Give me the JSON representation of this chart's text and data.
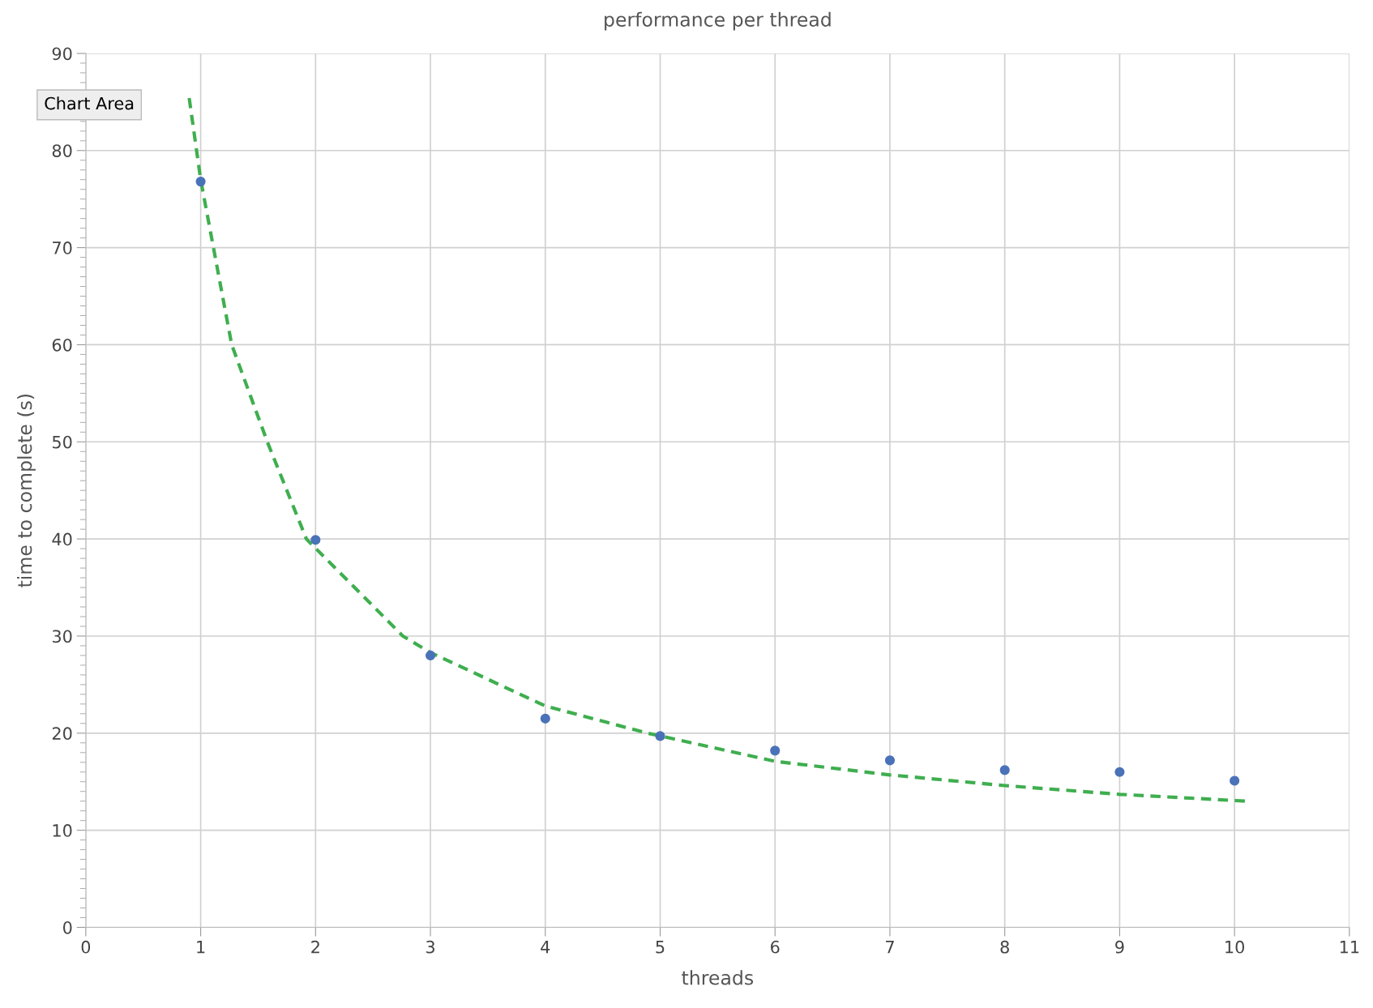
{
  "chart_data": {
    "type": "scatter",
    "title": "performance per thread",
    "xlabel": "threads",
    "ylabel": "time to complete (s)",
    "xlim": [
      0,
      11
    ],
    "xticks": [
      0,
      1,
      2,
      3,
      4,
      5,
      6,
      7,
      8,
      9,
      10,
      11
    ],
    "ylim": [
      0,
      90
    ],
    "yticks": [
      0,
      10,
      20,
      30,
      40,
      50,
      60,
      70,
      80,
      90
    ],
    "grid": true,
    "marker": "circle",
    "annotations": [
      "Chart Area"
    ],
    "series": [
      {
        "color": "#4a72b8",
        "x": [
          1,
          2,
          3,
          4,
          5,
          6,
          7,
          8,
          9,
          10
        ],
        "values": [
          76.8,
          39.9,
          28.0,
          21.5,
          19.7,
          18.2,
          17.2,
          16.2,
          16.0,
          15.1
        ]
      },
      {
        "type": "line",
        "line_style": "dashed",
        "marker": "none",
        "color": "#3fae4f",
        "x": [
          0.9,
          1.0,
          1.27,
          1.58,
          1.92,
          2.76,
          3,
          4,
          4.89,
          6,
          7,
          8,
          9,
          10.1
        ],
        "values": [
          85.4,
          77,
          60,
          50,
          40,
          30,
          28.3,
          22.8,
          20,
          17.1,
          15.7,
          14.6,
          13.7,
          13.0
        ]
      }
    ]
  }
}
